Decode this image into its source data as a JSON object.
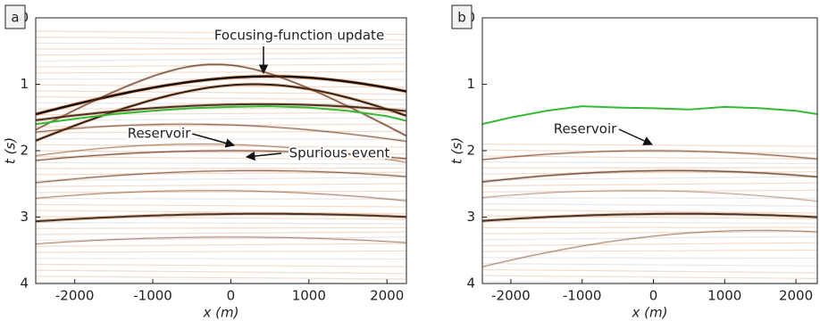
{
  "chart_data": [
    {
      "type": "image",
      "panel_label": "a",
      "xlabel": "x (m)",
      "ylabel": "t (s)",
      "xlim": [
        -2500,
        2250
      ],
      "ylim": [
        0,
        4
      ],
      "y_inverted": true,
      "xticks": [
        -2000,
        -1000,
        0,
        1000,
        2000
      ],
      "yticks": [
        0,
        1,
        2,
        3,
        4
      ],
      "series": [
        {
          "color": "#33bb33",
          "x": [
            -2500,
            -2000,
            -1500,
            -1000,
            -500,
            0,
            500,
            1000,
            1500,
            2000,
            2250
          ],
          "values": [
            1.6,
            1.52,
            1.45,
            1.4,
            1.36,
            1.34,
            1.33,
            1.35,
            1.4,
            1.48,
            1.55
          ]
        }
      ],
      "annotations": [
        "Focusing-function update",
        "Reservoir",
        "Spurious event"
      ]
    },
    {
      "type": "image",
      "panel_label": "b",
      "xlabel": "x (m)",
      "ylabel": "t (s)",
      "xlim": [
        -2400,
        2300
      ],
      "ylim": [
        0,
        4
      ],
      "y_inverted": true,
      "xticks": [
        -2000,
        -1000,
        0,
        1000,
        2000
      ],
      "yticks": [
        0,
        1,
        2,
        3,
        4
      ],
      "series": [
        {
          "color": "#33bb33",
          "x": [
            -2400,
            -2000,
            -1500,
            -1000,
            -500,
            0,
            500,
            1000,
            1500,
            2000,
            2300
          ],
          "values": [
            1.6,
            1.5,
            1.4,
            1.33,
            1.35,
            1.36,
            1.38,
            1.34,
            1.36,
            1.4,
            1.45
          ]
        }
      ],
      "annotations": [
        "Reservoir"
      ]
    }
  ]
}
